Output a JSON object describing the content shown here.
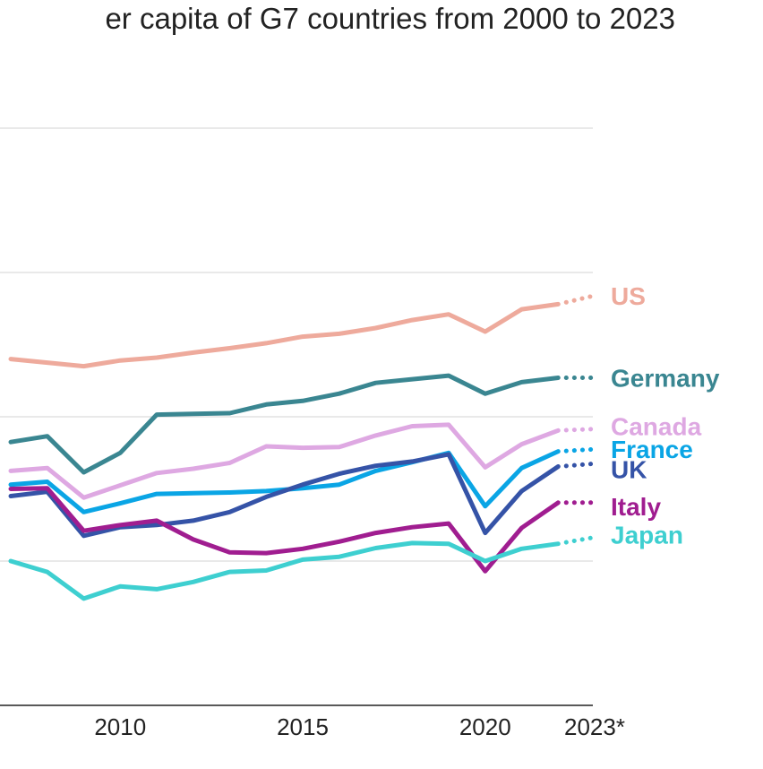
{
  "chart_data": {
    "type": "line",
    "title": "er capita of G7 countries from 2000 to 2023",
    "x_tick_labels": [
      "2010",
      "2015",
      "2020",
      "2023*"
    ],
    "x_ticks": [
      2010,
      2015,
      2020,
      2023
    ],
    "xlim": [
      2007,
      2023
    ],
    "ylim": [
      0,
      80000
    ],
    "yticks": [
      0,
      20000,
      40000,
      60000,
      80000
    ],
    "grid": true,
    "x": [
      2007,
      2008,
      2009,
      2010,
      2011,
      2012,
      2013,
      2014,
      2015,
      2016,
      2017,
      2018,
      2019,
      2020,
      2021,
      2022
    ],
    "projection_x": [
      2022,
      2023
    ],
    "series": [
      {
        "name": "US",
        "color": "#eeaa9c",
        "values": [
          48000,
          47500,
          47000,
          47800,
          48200,
          48900,
          49500,
          50200,
          51100,
          51500,
          52300,
          53400,
          54200,
          51800,
          54900,
          55600
        ],
        "projection": [
          55600,
          56800
        ]
      },
      {
        "name": "Germany",
        "color": "#3a8691",
        "values": [
          36500,
          37300,
          32300,
          35000,
          40300,
          40400,
          40500,
          41700,
          42200,
          43200,
          44700,
          45200,
          45700,
          43200,
          44800,
          45400
        ],
        "projection": [
          45400,
          45400
        ]
      },
      {
        "name": "Canada",
        "color": "#dea8e2",
        "values": [
          32500,
          32900,
          28800,
          30500,
          32200,
          32800,
          33600,
          35900,
          35700,
          35800,
          37400,
          38700,
          38900,
          33000,
          36200,
          38100
        ],
        "projection": [
          38100,
          38300
        ]
      },
      {
        "name": "France",
        "color": "#0aa5e5",
        "values": [
          30600,
          31000,
          26800,
          28000,
          29300,
          29400,
          29500,
          29700,
          30100,
          30600,
          32500,
          33700,
          35000,
          27600,
          32900,
          35200
        ],
        "projection": [
          35200,
          35500
        ]
      },
      {
        "name": "UK",
        "color": "#3553a7",
        "values": [
          29000,
          29600,
          23500,
          24700,
          25000,
          25600,
          26800,
          28900,
          30600,
          32100,
          33200,
          33800,
          34800,
          23900,
          29700,
          33100
        ],
        "projection": [
          33100,
          33500
        ]
      },
      {
        "name": "Italy",
        "color": "#a01d90",
        "values": [
          30000,
          30100,
          24200,
          25000,
          25600,
          23000,
          21200,
          21100,
          21700,
          22700,
          23900,
          24700,
          25200,
          18600,
          24600,
          28100
        ],
        "projection": [
          28100,
          28100
        ]
      },
      {
        "name": "Japan",
        "color": "#3ecfd0",
        "values": [
          20000,
          18500,
          14800,
          16500,
          16100,
          17100,
          18500,
          18700,
          20200,
          20600,
          21800,
          22500,
          22400,
          20000,
          21700,
          22400
        ],
        "projection": [
          22400,
          23300
        ]
      }
    ]
  }
}
